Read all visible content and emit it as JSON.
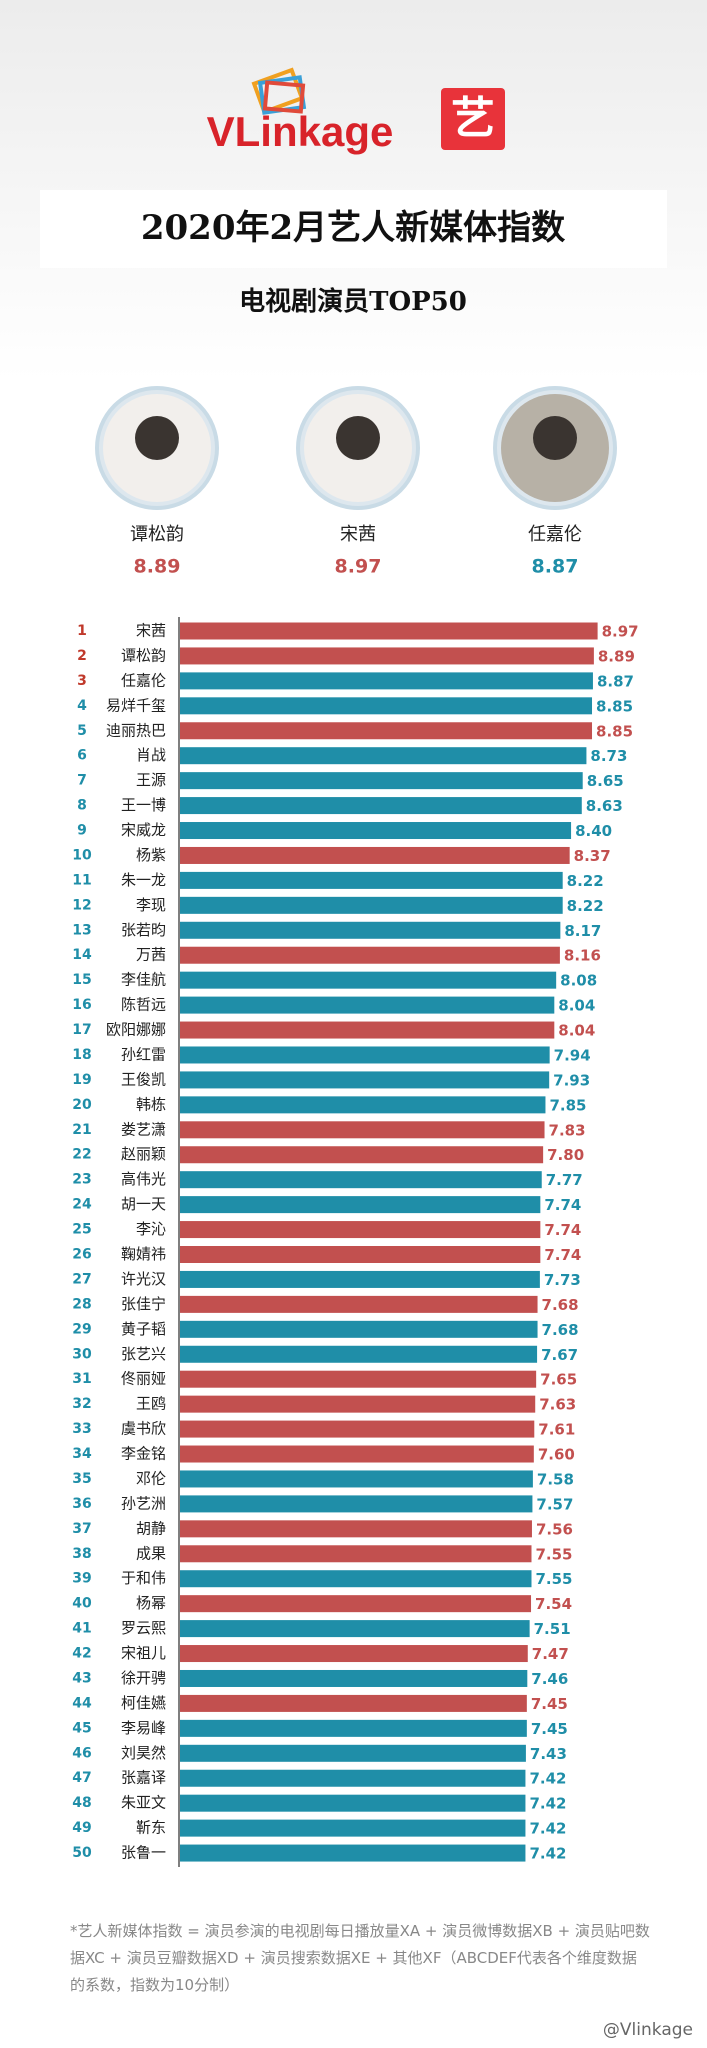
{
  "header": {
    "logo_text": "VLinkage",
    "logo_icon": "艺",
    "title": "2020年2月艺人新媒体指数",
    "subtitle": "电视剧演员TOP50"
  },
  "podium": [
    {
      "name": "谭松韵",
      "value": 8.89
    },
    {
      "name": "宋茜",
      "value": 8.97
    },
    {
      "name": "任嘉伦",
      "value": 8.87
    }
  ],
  "chart_data": {
    "type": "hbar",
    "ranks": [
      1,
      2,
      3,
      4,
      5,
      6,
      7,
      8,
      9,
      10,
      11,
      12,
      13,
      14,
      15,
      16,
      17,
      18,
      19,
      20,
      21,
      22,
      23,
      24,
      25,
      26,
      27,
      28,
      29,
      30,
      31,
      32,
      33,
      34,
      35,
      36,
      37,
      38,
      39,
      40,
      41,
      42,
      43,
      44,
      45,
      46,
      47,
      48,
      49,
      50
    ],
    "categories": [
      "宋茜",
      "谭松韵",
      "任嘉伦",
      "易烊千玺",
      "迪丽热巴",
      "肖战",
      "王源",
      "王一博",
      "宋威龙",
      "杨紫",
      "朱一龙",
      "李现",
      "张若昀",
      "万茜",
      "李佳航",
      "陈哲远",
      "欧阳娜娜",
      "孙红雷",
      "王俊凯",
      "韩栋",
      "娄艺潇",
      "赵丽颖",
      "高伟光",
      "胡一天",
      "李沁",
      "鞠婧祎",
      "许光汉",
      "张佳宁",
      "黄子韬",
      "张艺兴",
      "佟丽娅",
      "王鸥",
      "虞书欣",
      "李金铭",
      "邓伦",
      "孙艺洲",
      "胡静",
      "成果",
      "于和伟",
      "杨幂",
      "罗云熙",
      "宋祖儿",
      "徐开骋",
      "柯佳嬿",
      "李易峰",
      "刘昊然",
      "张嘉译",
      "朱亚文",
      "靳东",
      "张鲁一"
    ],
    "values": [
      8.97,
      8.89,
      8.87,
      8.85,
      8.85,
      8.73,
      8.65,
      8.63,
      8.4,
      8.37,
      8.22,
      8.22,
      8.17,
      8.16,
      8.08,
      8.04,
      8.04,
      7.94,
      7.93,
      7.85,
      7.83,
      7.8,
      7.77,
      7.74,
      7.74,
      7.74,
      7.73,
      7.68,
      7.68,
      7.67,
      7.65,
      7.63,
      7.61,
      7.6,
      7.58,
      7.57,
      7.56,
      7.55,
      7.55,
      7.54,
      7.51,
      7.47,
      7.46,
      7.45,
      7.45,
      7.43,
      7.42,
      7.42,
      7.42,
      7.42
    ],
    "value_labels": [
      "8.97",
      "8.89",
      "8.87",
      "8.85",
      "8.85",
      "8.73",
      "8.65",
      "8.63",
      "8.40",
      "8.37",
      "8.22",
      "8.22",
      "8.17",
      "8.16",
      "8.08",
      "8.04",
      "8.04",
      "7.94",
      "7.93",
      "7.85",
      "7.83",
      "7.80",
      "7.77",
      "7.74",
      "7.74",
      "7.74",
      "7.73",
      "7.68",
      "7.68",
      "7.67",
      "7.65",
      "7.63",
      "7.61",
      "7.60",
      "7.58",
      "7.57",
      "7.56",
      "7.55",
      "7.55",
      "7.54",
      "7.51",
      "7.47",
      "7.46",
      "7.45",
      "7.45",
      "7.43",
      "7.42",
      "7.42",
      "7.42",
      "7.42"
    ],
    "colors": [
      "#c2504f",
      "#c2504f",
      "#1f8ea8",
      "#1f8ea8",
      "#c2504f",
      "#1f8ea8",
      "#1f8ea8",
      "#1f8ea8",
      "#1f8ea8",
      "#c2504f",
      "#1f8ea8",
      "#1f8ea8",
      "#1f8ea8",
      "#c2504f",
      "#1f8ea8",
      "#1f8ea8",
      "#c2504f",
      "#1f8ea8",
      "#1f8ea8",
      "#1f8ea8",
      "#c2504f",
      "#c2504f",
      "#1f8ea8",
      "#1f8ea8",
      "#c2504f",
      "#c2504f",
      "#1f8ea8",
      "#c2504f",
      "#1f8ea8",
      "#1f8ea8",
      "#c2504f",
      "#c2504f",
      "#c2504f",
      "#c2504f",
      "#1f8ea8",
      "#1f8ea8",
      "#c2504f",
      "#c2504f",
      "#1f8ea8",
      "#c2504f",
      "#1f8ea8",
      "#c2504f",
      "#1f8ea8",
      "#c2504f",
      "#1f8ea8",
      "#1f8ea8",
      "#1f8ea8",
      "#1f8ea8",
      "#1f8ea8",
      "#1f8ea8"
    ],
    "rank_colors": [
      "#c0392b",
      "#c0392b",
      "#c0392b",
      "#1f8ea8",
      "#1f8ea8",
      "#1f8ea8",
      "#1f8ea8",
      "#1f8ea8",
      "#1f8ea8",
      "#1f8ea8",
      "#1f8ea8",
      "#1f8ea8",
      "#1f8ea8",
      "#1f8ea8",
      "#1f8ea8",
      "#1f8ea8",
      "#1f8ea8",
      "#1f8ea8",
      "#1f8ea8",
      "#1f8ea8",
      "#1f8ea8",
      "#1f8ea8",
      "#1f8ea8",
      "#1f8ea8",
      "#1f8ea8",
      "#1f8ea8",
      "#1f8ea8",
      "#1f8ea8",
      "#1f8ea8",
      "#1f8ea8",
      "#1f8ea8",
      "#1f8ea8",
      "#1f8ea8",
      "#1f8ea8",
      "#1f8ea8",
      "#1f8ea8",
      "#1f8ea8",
      "#1f8ea8",
      "#1f8ea8",
      "#1f8ea8",
      "#1f8ea8",
      "#1f8ea8",
      "#1f8ea8",
      "#1f8ea8",
      "#1f8ea8",
      "#1f8ea8",
      "#1f8ea8",
      "#1f8ea8",
      "#1f8ea8",
      "#1f8ea8"
    ],
    "xlim": [
      0,
      9
    ]
  },
  "footnote": "*艺人新媒体指数 = 演员参演的电视剧每日播放量XA + 演员微博数据XB + 演员贴吧数据XC + 演员豆瓣数据XD + 演员搜索数据XE + 其他XF（ABCDEF代表各个维度数据的系数，指数为10分制）",
  "watermark": "@Vlinkage"
}
